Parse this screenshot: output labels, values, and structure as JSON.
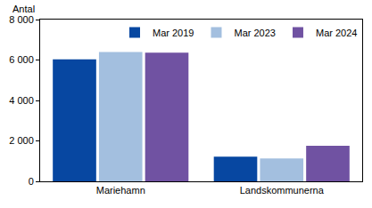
{
  "chart_data": {
    "type": "bar",
    "y_label": "Antal",
    "categories": [
      "Mariehamn",
      "Landskommunerna"
    ],
    "series": [
      {
        "name": "Mar 2019",
        "color": "#0747a1",
        "values": [
          6030,
          1220
        ]
      },
      {
        "name": "Mar 2023",
        "color": "#a3bfdf",
        "values": [
          6400,
          1130
        ]
      },
      {
        "name": "Mar 2024",
        "color": "#7052a2",
        "values": [
          6360,
          1760
        ]
      }
    ],
    "ylim": [
      0,
      8000
    ],
    "yticks": [
      0,
      {
        "value": 2000,
        "label": "2 000"
      },
      {
        "value": 4000,
        "label": "4 000"
      },
      {
        "value": 6000,
        "label": "6 000"
      },
      {
        "value": 8000,
        "label": "8 000"
      }
    ],
    "grid": false,
    "legend": "top right"
  }
}
